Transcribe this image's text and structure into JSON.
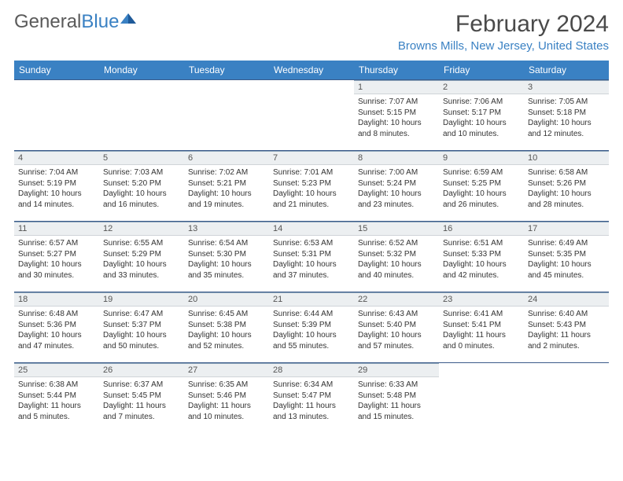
{
  "brand": {
    "text1": "General",
    "text2": "Blue"
  },
  "title": {
    "month": "February 2024",
    "location": "Browns Mills, New Jersey, United States"
  },
  "colors": {
    "header_bg": "#3a81c3",
    "header_text": "#ffffff",
    "daynum_bg": "#eceff1",
    "border": "#3a5a8a",
    "brand_grey": "#5a5a5a",
    "brand_blue": "#3a81c3"
  },
  "weekdays": [
    "Sunday",
    "Monday",
    "Tuesday",
    "Wednesday",
    "Thursday",
    "Friday",
    "Saturday"
  ],
  "first_day_index": 4,
  "days": [
    {
      "n": 1,
      "sunrise": "7:07 AM",
      "sunset": "5:15 PM",
      "daylight": "10 hours and 8 minutes."
    },
    {
      "n": 2,
      "sunrise": "7:06 AM",
      "sunset": "5:17 PM",
      "daylight": "10 hours and 10 minutes."
    },
    {
      "n": 3,
      "sunrise": "7:05 AM",
      "sunset": "5:18 PM",
      "daylight": "10 hours and 12 minutes."
    },
    {
      "n": 4,
      "sunrise": "7:04 AM",
      "sunset": "5:19 PM",
      "daylight": "10 hours and 14 minutes."
    },
    {
      "n": 5,
      "sunrise": "7:03 AM",
      "sunset": "5:20 PM",
      "daylight": "10 hours and 16 minutes."
    },
    {
      "n": 6,
      "sunrise": "7:02 AM",
      "sunset": "5:21 PM",
      "daylight": "10 hours and 19 minutes."
    },
    {
      "n": 7,
      "sunrise": "7:01 AM",
      "sunset": "5:23 PM",
      "daylight": "10 hours and 21 minutes."
    },
    {
      "n": 8,
      "sunrise": "7:00 AM",
      "sunset": "5:24 PM",
      "daylight": "10 hours and 23 minutes."
    },
    {
      "n": 9,
      "sunrise": "6:59 AM",
      "sunset": "5:25 PM",
      "daylight": "10 hours and 26 minutes."
    },
    {
      "n": 10,
      "sunrise": "6:58 AM",
      "sunset": "5:26 PM",
      "daylight": "10 hours and 28 minutes."
    },
    {
      "n": 11,
      "sunrise": "6:57 AM",
      "sunset": "5:27 PM",
      "daylight": "10 hours and 30 minutes."
    },
    {
      "n": 12,
      "sunrise": "6:55 AM",
      "sunset": "5:29 PM",
      "daylight": "10 hours and 33 minutes."
    },
    {
      "n": 13,
      "sunrise": "6:54 AM",
      "sunset": "5:30 PM",
      "daylight": "10 hours and 35 minutes."
    },
    {
      "n": 14,
      "sunrise": "6:53 AM",
      "sunset": "5:31 PM",
      "daylight": "10 hours and 37 minutes."
    },
    {
      "n": 15,
      "sunrise": "6:52 AM",
      "sunset": "5:32 PM",
      "daylight": "10 hours and 40 minutes."
    },
    {
      "n": 16,
      "sunrise": "6:51 AM",
      "sunset": "5:33 PM",
      "daylight": "10 hours and 42 minutes."
    },
    {
      "n": 17,
      "sunrise": "6:49 AM",
      "sunset": "5:35 PM",
      "daylight": "10 hours and 45 minutes."
    },
    {
      "n": 18,
      "sunrise": "6:48 AM",
      "sunset": "5:36 PM",
      "daylight": "10 hours and 47 minutes."
    },
    {
      "n": 19,
      "sunrise": "6:47 AM",
      "sunset": "5:37 PM",
      "daylight": "10 hours and 50 minutes."
    },
    {
      "n": 20,
      "sunrise": "6:45 AM",
      "sunset": "5:38 PM",
      "daylight": "10 hours and 52 minutes."
    },
    {
      "n": 21,
      "sunrise": "6:44 AM",
      "sunset": "5:39 PM",
      "daylight": "10 hours and 55 minutes."
    },
    {
      "n": 22,
      "sunrise": "6:43 AM",
      "sunset": "5:40 PM",
      "daylight": "10 hours and 57 minutes."
    },
    {
      "n": 23,
      "sunrise": "6:41 AM",
      "sunset": "5:41 PM",
      "daylight": "11 hours and 0 minutes."
    },
    {
      "n": 24,
      "sunrise": "6:40 AM",
      "sunset": "5:43 PM",
      "daylight": "11 hours and 2 minutes."
    },
    {
      "n": 25,
      "sunrise": "6:38 AM",
      "sunset": "5:44 PM",
      "daylight": "11 hours and 5 minutes."
    },
    {
      "n": 26,
      "sunrise": "6:37 AM",
      "sunset": "5:45 PM",
      "daylight": "11 hours and 7 minutes."
    },
    {
      "n": 27,
      "sunrise": "6:35 AM",
      "sunset": "5:46 PM",
      "daylight": "11 hours and 10 minutes."
    },
    {
      "n": 28,
      "sunrise": "6:34 AM",
      "sunset": "5:47 PM",
      "daylight": "11 hours and 13 minutes."
    },
    {
      "n": 29,
      "sunrise": "6:33 AM",
      "sunset": "5:48 PM",
      "daylight": "11 hours and 15 minutes."
    }
  ],
  "labels": {
    "sunrise": "Sunrise:",
    "sunset": "Sunset:",
    "daylight": "Daylight:"
  }
}
